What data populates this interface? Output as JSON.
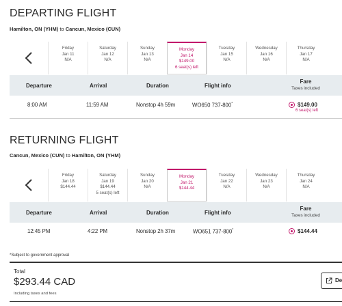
{
  "departing": {
    "title": "DEPARTING FLIGHT",
    "origin": "Hamilton, ON (YHM)",
    "to": "to",
    "destination": "Cancun, Mexico (CUN)",
    "days": [
      {
        "dow": "Friday",
        "date": "Jan 11",
        "price": "N/A",
        "seats": ""
      },
      {
        "dow": "Saturday",
        "date": "Jan 12",
        "price": "N/A",
        "seats": ""
      },
      {
        "dow": "Sunday",
        "date": "Jan 13",
        "price": "N/A",
        "seats": ""
      },
      {
        "dow": "Monday",
        "date": "Jan 14",
        "price": "$149.00",
        "seats": "6 seat(s) left"
      },
      {
        "dow": "Tuesday",
        "date": "Jan 15",
        "price": "N/A",
        "seats": ""
      },
      {
        "dow": "Wednesday",
        "date": "Jan 16",
        "price": "N/A",
        "seats": ""
      },
      {
        "dow": "Thursday",
        "date": "Jan 17",
        "price": "N/A",
        "seats": ""
      }
    ],
    "flight": {
      "departure": "8:00 AM",
      "arrival": "11:59 AM",
      "duration": "Nonstop  4h 59m",
      "flight_info": "WO650  737-800",
      "asterisk": "*",
      "fare": "$149.00",
      "fare_seats": "6 seat(s) left"
    }
  },
  "returning": {
    "title": "RETURNING FLIGHT",
    "origin": "Cancun, Mexico (CUN)",
    "to": "to",
    "destination": "Hamilton, ON (YHM)",
    "days": [
      {
        "dow": "Friday",
        "date": "Jan 18",
        "price": "$144.44",
        "seats": ""
      },
      {
        "dow": "Saturday",
        "date": "Jan 19",
        "price": "$144.44",
        "seats": "5 seat(s) left"
      },
      {
        "dow": "Sunday",
        "date": "Jan 20",
        "price": "N/A",
        "seats": ""
      },
      {
        "dow": "Monday",
        "date": "Jan 21",
        "price": "$144.44",
        "seats": ""
      },
      {
        "dow": "Tuesday",
        "date": "Jan 22",
        "price": "N/A",
        "seats": ""
      },
      {
        "dow": "Wednesday",
        "date": "Jan 23",
        "price": "N/A",
        "seats": ""
      },
      {
        "dow": "Thursday",
        "date": "Jan 24",
        "price": "N/A",
        "seats": ""
      }
    ],
    "flight": {
      "departure": "12:45 PM",
      "arrival": "4:22 PM",
      "duration": "Nonstop  2h 37m",
      "flight_info": "WO651  737-800",
      "asterisk": "*",
      "fare": "$144.44",
      "fare_seats": ""
    }
  },
  "table_headers": {
    "departure": "Departure",
    "arrival": "Arrival",
    "duration": "Duration",
    "flight_info": "Flight info",
    "fare": "Fare",
    "fare_sub": "Taxes included"
  },
  "footnote": "*Subject to government approval",
  "total": {
    "label": "Total",
    "amount": "$293.44 CAD",
    "note": "Including taxes and fees"
  },
  "details_button": "De",
  "icons": {
    "prev": "chevron-left-icon",
    "radio": "radio-selected-icon",
    "external": "external-link-icon"
  },
  "colors": {
    "accent": "#c2186b",
    "header_bg": "#e7ecef"
  }
}
